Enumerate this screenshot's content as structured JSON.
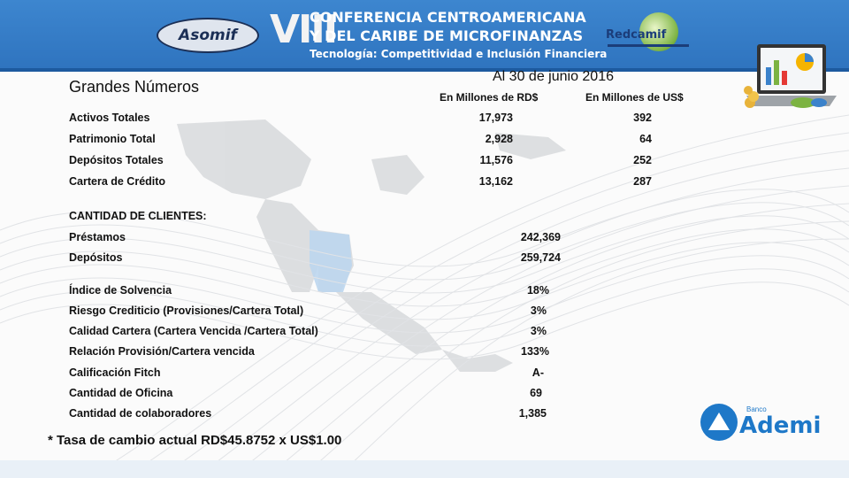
{
  "header": {
    "asomif_logo": "Asomif",
    "edition": "VIII",
    "conference_line1": "CONFERENCIA CENTROAMERICANA",
    "conference_line2": "Y DEL CARIBE DE MICROFINANZAS",
    "conference_line3": "Tecnología: Competitividad e Inclusión Financiera",
    "redcamif_logo": "Redcamif",
    "header_color": "#3b82cb"
  },
  "content": {
    "title": "Grandes Números",
    "date": "Al 30 de junio 2016",
    "col_rd": "En Millones de RD$",
    "col_us": "En Millones de US$",
    "financials": [
      {
        "label": "Activos Totales",
        "rd": "17,973",
        "us": "392"
      },
      {
        "label": "Patrimonio Total",
        "rd": "2,928",
        "us": "64"
      },
      {
        "label": "Depósitos Totales",
        "rd": "11,576",
        "us": "252"
      },
      {
        "label": "Cartera de Crédito",
        "rd": "13,162",
        "us": "287"
      }
    ],
    "clients_header": "CANTIDAD DE CLIENTES:",
    "clients": [
      {
        "label": "Préstamos",
        "value": "242,369"
      },
      {
        "label": "Depósitos",
        "value": "259,724"
      }
    ],
    "indicators": [
      {
        "label": "Índice de Solvencia",
        "value": "18%"
      },
      {
        "label": "Riesgo Crediticio  (Provisiones/Cartera Total)",
        "value": "3%"
      },
      {
        "label": "Calidad Cartera (Cartera Vencida /Cartera Total)",
        "value": "3%"
      },
      {
        "label": "Relación Provisión/Cartera vencida",
        "value": "133%"
      },
      {
        "label": "Calificación Fitch",
        "value": "A-"
      },
      {
        "label": "Cantidad de Oficina",
        "value": "69"
      },
      {
        "label": "Cantidad de colaboradores",
        "value": "1,385"
      }
    ],
    "footnote": "* Tasa de cambio actual RD$45.8752 x US$1.00"
  },
  "footer": {
    "bank_small": "Banco",
    "bank_name": "Ademi",
    "brand_color": "#1e78c8"
  }
}
